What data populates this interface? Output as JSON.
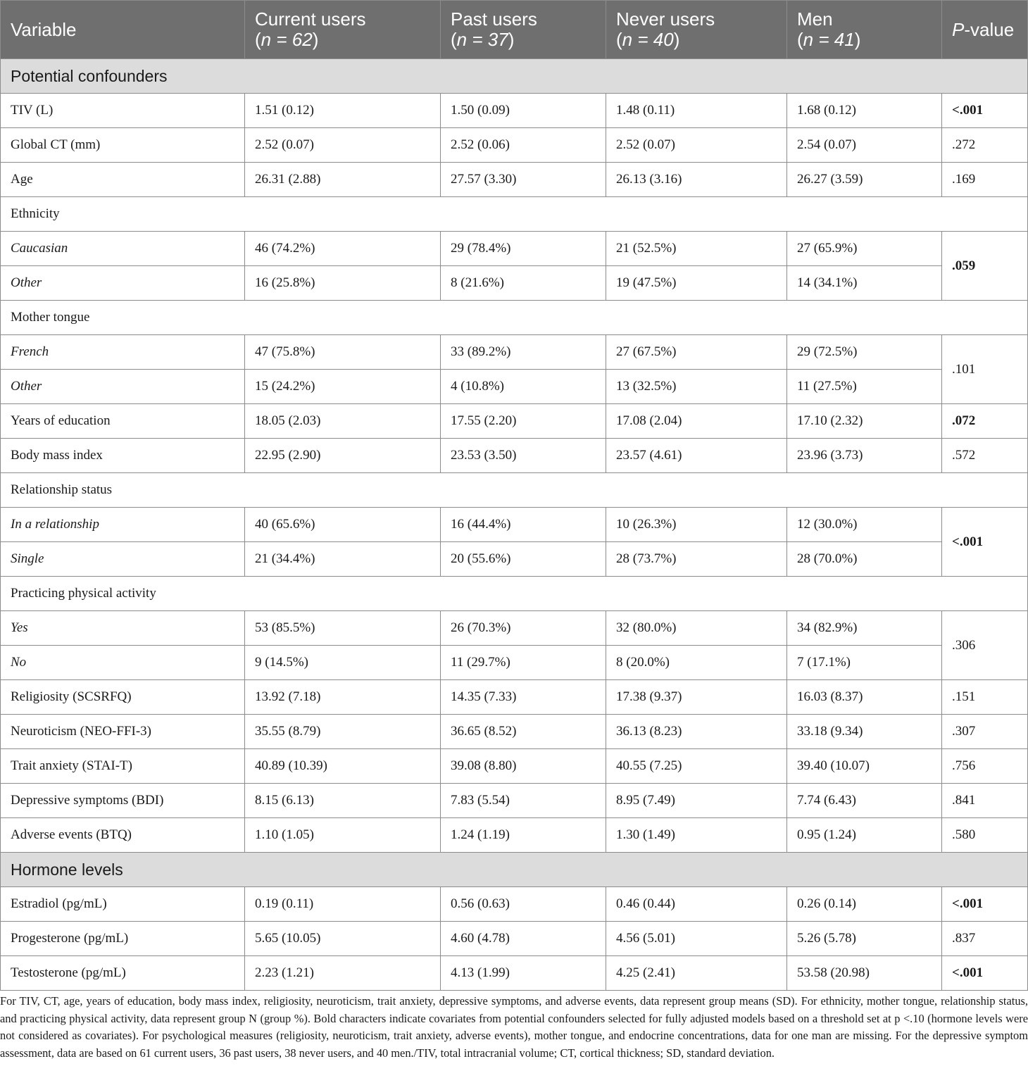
{
  "header": {
    "variable": "Variable",
    "current_users": "Current users",
    "current_n": "n = 62",
    "past_users": "Past users",
    "past_n": "n = 37",
    "never_users": "Never users",
    "never_n": "n = 40",
    "men": "Men",
    "men_n": "n = 41",
    "p_letter": "P",
    "p_rest": "-value"
  },
  "sections": {
    "confounders": "Potential confounders",
    "hormones": "Hormone levels"
  },
  "rows": {
    "tiv": {
      "label": "TIV (L)",
      "c": "1.51 (0.12)",
      "p": "1.50 (0.09)",
      "n": "1.48 (0.11)",
      "m": "1.68 (0.12)",
      "pv": "<.001"
    },
    "ct": {
      "label": "Global CT (mm)",
      "c": "2.52 (0.07)",
      "p": "2.52 (0.06)",
      "n": "2.52 (0.07)",
      "m": "2.54 (0.07)",
      "pv": ".272"
    },
    "age": {
      "label": "Age",
      "c": "26.31 (2.88)",
      "p": "27.57 (3.30)",
      "n": "26.13 (3.16)",
      "m": "26.27 (3.59)",
      "pv": ".169"
    },
    "eth": {
      "label": "Ethnicity"
    },
    "eth_cauc": {
      "label": "Caucasian",
      "c": "46 (74.2%)",
      "p": "29 (78.4%)",
      "n": "21 (52.5%)",
      "m": "27 (65.9%)",
      "pv": ".059"
    },
    "eth_other": {
      "label": "Other",
      "c": "16 (25.8%)",
      "p": "8 (21.6%)",
      "n": "19 (47.5%)",
      "m": "14 (34.1%)"
    },
    "tongue": {
      "label": "Mother tongue"
    },
    "tongue_fr": {
      "label": "French",
      "c": "47 (75.8%)",
      "p": "33 (89.2%)",
      "n": "27 (67.5%)",
      "m": "29 (72.5%)",
      "pv": ".101"
    },
    "tongue_other": {
      "label": "Other",
      "c": "15 (24.2%)",
      "p": "4 (10.8%)",
      "n": "13 (32.5%)",
      "m": "11 (27.5%)"
    },
    "edu": {
      "label": "Years of education",
      "c": "18.05 (2.03)",
      "p": "17.55 (2.20)",
      "n": "17.08 (2.04)",
      "m": "17.10 (2.32)",
      "pv": ".072"
    },
    "bmi": {
      "label": "Body mass index",
      "c": "22.95 (2.90)",
      "p": "23.53 (3.50)",
      "n": "23.57 (4.61)",
      "m": "23.96 (3.73)",
      "pv": ".572"
    },
    "rel": {
      "label": "Relationship status"
    },
    "rel_in": {
      "label": "In a relationship",
      "c": "40 (65.6%)",
      "p": "16 (44.4%)",
      "n": "10 (26.3%)",
      "m": "12 (30.0%)",
      "pv": "<.001"
    },
    "rel_single": {
      "label": "Single",
      "c": "21 (34.4%)",
      "p": "20 (55.6%)",
      "n": "28 (73.7%)",
      "m": "28 (70.0%)"
    },
    "phys": {
      "label": "Practicing physical activity"
    },
    "phys_yes": {
      "label": "Yes",
      "c": "53 (85.5%)",
      "p": "26 (70.3%)",
      "n": "32 (80.0%)",
      "m": "34 (82.9%)",
      "pv": ".306"
    },
    "phys_no": {
      "label": "No",
      "c": "9 (14.5%)",
      "p": "11 (29.7%)",
      "n": "8 (20.0%)",
      "m": "7 (17.1%)"
    },
    "relig": {
      "label": "Religiosity (SCSRFQ)",
      "c": "13.92 (7.18)",
      "p": "14.35 (7.33)",
      "n": "17.38 (9.37)",
      "m": "16.03 (8.37)",
      "pv": ".151"
    },
    "neuro": {
      "label": "Neuroticism (NEO-FFI-3)",
      "c": "35.55 (8.79)",
      "p": "36.65 (8.52)",
      "n": "36.13 (8.23)",
      "m": "33.18 (9.34)",
      "pv": ".307"
    },
    "anx": {
      "label": "Trait anxiety (STAI-T)",
      "c": "40.89 (10.39)",
      "p": "39.08 (8.80)",
      "n": "40.55 (7.25)",
      "m": "39.40 (10.07)",
      "pv": ".756"
    },
    "dep": {
      "label": "Depressive symptoms (BDI)",
      "c": "8.15 (6.13)",
      "p": "7.83 (5.54)",
      "n": "8.95 (7.49)",
      "m": "7.74 (6.43)",
      "pv": ".841"
    },
    "adv": {
      "label": "Adverse events (BTQ)",
      "c": "1.10 (1.05)",
      "p": "1.24 (1.19)",
      "n": "1.30 (1.49)",
      "m": "0.95 (1.24)",
      "pv": ".580"
    },
    "estr": {
      "label": "Estradiol (pg/mL)",
      "c": "0.19 (0.11)",
      "p": "0.56 (0.63)",
      "n": "0.46 (0.44)",
      "m": "0.26 (0.14)",
      "pv": "<.001"
    },
    "prog": {
      "label": "Progesterone (pg/mL)",
      "c": "5.65 (10.05)",
      "p": "4.60 (4.78)",
      "n": "4.56 (5.01)",
      "m": "5.26 (5.78)",
      "pv": ".837"
    },
    "test": {
      "label": "Testosterone (pg/mL)",
      "c": "2.23 (1.21)",
      "p": "4.13 (1.99)",
      "n": "4.25 (2.41)",
      "m": "53.58 (20.98)",
      "pv": "<.001"
    }
  },
  "footnote": "For TIV, CT, age, years of education, body mass index, religiosity, neuroticism, trait anxiety, depressive symptoms, and adverse events, data represent group means (SD). For ethnicity, mother tongue, relationship status, and practicing physical activity, data represent group N (group %). Bold characters indicate covariates from potential confounders selected for fully adjusted models based on a threshold set at p <.10 (hormone levels were not considered as covariates). For psychological measures (religiosity, neuroticism, trait anxiety, adverse events), mother tongue, and endocrine concentrations, data for one man are missing. For the depressive symptom assessment, data are based on 61 current users, 36 past users, 38 never users, and 40 men./TIV, total intracranial volume; CT, cortical thickness; SD, standard deviation."
}
